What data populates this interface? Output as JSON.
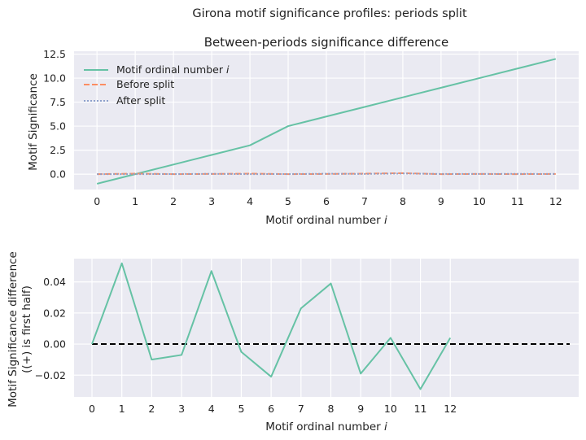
{
  "figure": {
    "suptitle": "Girona motif significance profiles: periods split"
  },
  "chart_data": [
    {
      "type": "line",
      "title": "Between-periods significance difference",
      "xlabel": "Motif ordinal number ",
      "xlabel_italic": "i",
      "ylabel": "Motif Significance",
      "x": [
        0,
        1,
        2,
        3,
        4,
        5,
        6,
        7,
        8,
        9,
        10,
        11,
        12
      ],
      "xlim": [
        -0.6,
        12.6
      ],
      "ylim": [
        -1.6,
        12.8
      ],
      "yticks": [
        0.0,
        2.5,
        5.0,
        7.5,
        10.0,
        12.5
      ],
      "ytick_labels": [
        "0.0",
        "2.5",
        "5.0",
        "7.5",
        "10.0",
        "12.5"
      ],
      "grid": true,
      "legend_position": "top-left",
      "series": [
        {
          "name": "Motif ordinal number ",
          "name_italic": "i",
          "color": "#66c2a5",
          "dash": "solid",
          "values": [
            -1,
            0,
            1,
            2,
            3,
            5,
            6,
            7,
            8,
            9,
            10,
            11,
            12
          ]
        },
        {
          "name": "Before split",
          "color": "#fc8d62",
          "dash": "dashed",
          "values": [
            0.0,
            0.05,
            0.0,
            0.02,
            0.05,
            0.0,
            0.02,
            0.05,
            0.1,
            0.0,
            0.02,
            0.0,
            0.02
          ]
        },
        {
          "name": "After split",
          "color": "#8da0cb",
          "dash": "dotted",
          "values": [
            0.0,
            0.0,
            0.01,
            0.03,
            0.0,
            0.01,
            0.04,
            0.02,
            0.06,
            0.02,
            0.02,
            0.03,
            0.02
          ]
        }
      ]
    },
    {
      "type": "line",
      "title": "",
      "xlabel": "Motif ordinal number ",
      "xlabel_italic": "i",
      "ylabel": "Motif Significance difference",
      "ylabel_line2": "((+) is first half)",
      "x": [
        0,
        1,
        2,
        3,
        4,
        5,
        6,
        7,
        8,
        9,
        10,
        11,
        12
      ],
      "xlim": [
        -0.6,
        16.3
      ],
      "ylim": [
        -0.034,
        0.055
      ],
      "yticks": [
        -0.02,
        0.0,
        0.02,
        0.04
      ],
      "ytick_labels": [
        "−0.02",
        "0.00",
        "0.02",
        "0.04"
      ],
      "grid": true,
      "series": [
        {
          "color": "#66c2a5",
          "dash": "solid",
          "values": [
            0.0,
            0.052,
            -0.01,
            -0.007,
            0.047,
            -0.005,
            -0.021,
            0.023,
            0.039,
            -0.019,
            0.004,
            -0.029,
            0.004
          ]
        }
      ],
      "reference_line": {
        "y": 0.0,
        "x_range": [
          0,
          16
        ],
        "color": "#000000",
        "dash": "dashed"
      }
    }
  ]
}
